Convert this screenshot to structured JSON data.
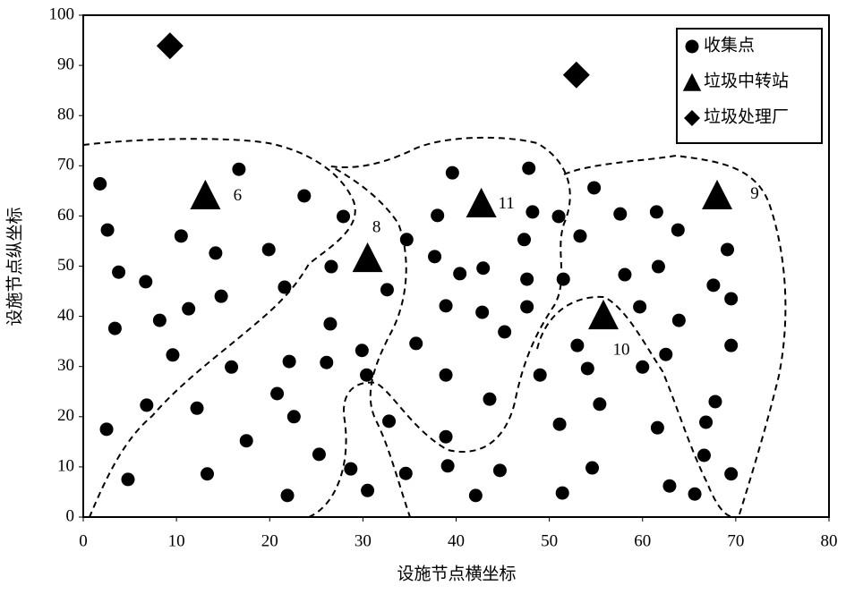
{
  "chart_data": {
    "type": "scatter",
    "xlabel": "设施节点横坐标",
    "ylabel": "设施节点纵坐标",
    "xlim": [
      0,
      80
    ],
    "xticks": [
      0,
      10,
      20,
      30,
      40,
      50,
      60,
      70,
      80
    ],
    "ylim": [
      0,
      100
    ],
    "yticks": [
      0,
      10,
      20,
      30,
      40,
      50,
      60,
      70,
      80,
      90,
      100
    ],
    "grid": false,
    "legend": "upper right",
    "series": [
      {
        "name": "收集点",
        "color": "#000000",
        "marker": "circle",
        "x": [
          1.8,
          2.6,
          3.8,
          3.4,
          2.5,
          4.8,
          6.7,
          8.2,
          9.6,
          6.8,
          10.5,
          11.3,
          12.2,
          13.3,
          14.2,
          14.8,
          15.9,
          16.7,
          17.5,
          19.9,
          21.6,
          22.1,
          20.8,
          22.6,
          21.9,
          23.7,
          26.6,
          26.5,
          26.1,
          25.3,
          27.9,
          28.7,
          29.9,
          30.4,
          30.5,
          32.6,
          32.8,
          34.6,
          34.7,
          35.7,
          38.0,
          37.7,
          38.9,
          38.9,
          38.9,
          39.1,
          39.6,
          40.4,
          42.9,
          42.8,
          43.6,
          42.1,
          44.7,
          45.2,
          47.3,
          47.8,
          48.2,
          47.6,
          47.6,
          49.0,
          51.0,
          51.5,
          51.1,
          51.4,
          53.0,
          53.3,
          54.1,
          54.8,
          54.6,
          55.4,
          57.6,
          58.1,
          59.7,
          60.0,
          61.5,
          61.7,
          61.6,
          62.5,
          62.9,
          63.8,
          63.9,
          65.6,
          66.6,
          66.8,
          67.6,
          67.8,
          69.1,
          69.5,
          69.5,
          69.5
        ],
        "values": [
          66.4,
          57.2,
          48.8,
          37.6,
          17.5,
          7.5,
          46.9,
          39.2,
          32.3,
          22.3,
          56.0,
          41.5,
          21.7,
          8.6,
          52.6,
          44.0,
          29.9,
          69.3,
          15.2,
          53.3,
          45.8,
          31.0,
          24.6,
          20.0,
          4.3,
          64.0,
          49.9,
          38.5,
          30.8,
          12.5,
          59.9,
          9.6,
          33.2,
          28.3,
          5.3,
          45.3,
          19.1,
          8.7,
          55.3,
          34.6,
          60.1,
          51.9,
          42.1,
          28.3,
          16.0,
          10.2,
          68.6,
          48.5,
          49.6,
          40.8,
          23.5,
          4.3,
          9.3,
          36.9,
          55.3,
          69.5,
          60.8,
          47.4,
          41.9,
          28.3,
          59.9,
          47.4,
          18.5,
          4.8,
          34.2,
          56.0,
          29.6,
          65.6,
          9.8,
          22.5,
          60.4,
          48.3,
          41.9,
          29.9,
          60.8,
          49.9,
          17.8,
          32.4,
          6.2,
          57.2,
          39.2,
          4.6,
          12.3,
          18.9,
          46.2,
          23.0,
          53.3,
          43.5,
          34.2,
          8.6
        ]
      },
      {
        "name": "垃圾中转站",
        "color": "#000000",
        "marker": "triangle",
        "x": [
          13.1,
          30.5,
          42.7,
          55.8,
          68.0
        ],
        "values": [
          64.2,
          51.7,
          62.6,
          40.3,
          64.2
        ],
        "labels": [
          "6",
          "8",
          "11",
          "10",
          "9"
        ]
      },
      {
        "name": "垃圾处理厂",
        "color": "#000000",
        "marker": "diamond",
        "x": [
          9.3,
          52.9
        ],
        "values": [
          93.9,
          88.1
        ]
      }
    ]
  }
}
